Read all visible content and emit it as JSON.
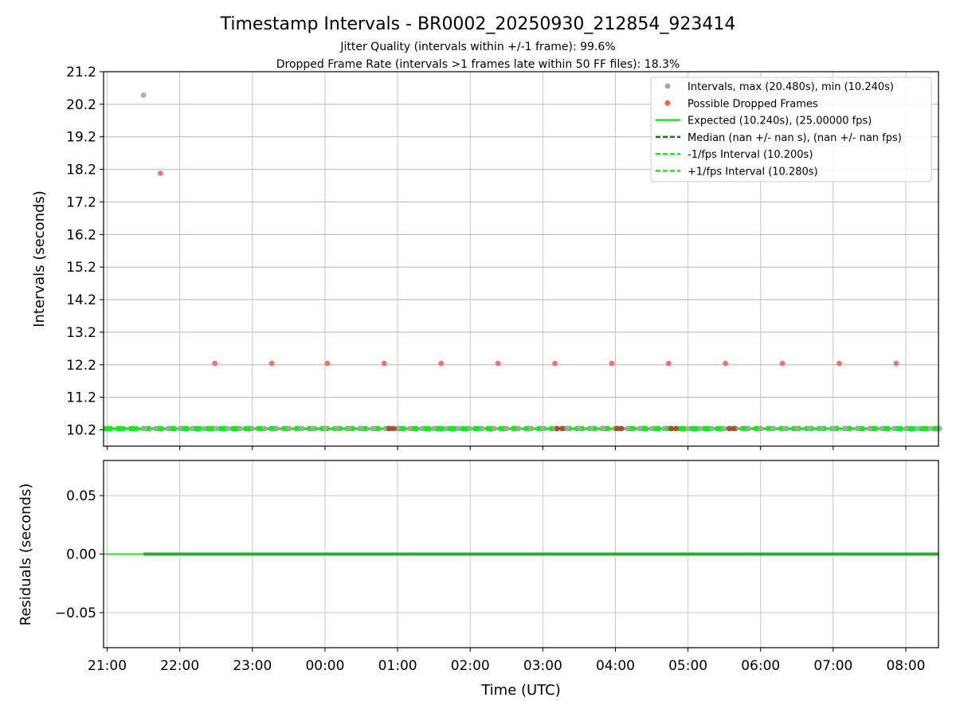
{
  "chart_data": [
    {
      "type": "scatter",
      "title": "Timestamp Intervals - BR0002_20250930_212854_923414",
      "subtitle_lines": [
        "Jitter Quality (intervals within +/-1 frame): 99.6%",
        "Dropped Frame Rate (intervals >1 frames late within 50 FF files): 18.3%"
      ],
      "ylabel": "Intervals (seconds)",
      "ylim": [
        9.7,
        21.2
      ],
      "yticks": [
        10.2,
        11.2,
        12.2,
        13.2,
        14.2,
        15.2,
        16.2,
        17.2,
        18.2,
        19.2,
        20.2,
        21.2
      ],
      "xlim_hours": [
        20.95,
        32.45
      ],
      "grid": true,
      "legend_position": "top-right",
      "series": [
        {
          "name": "Intervals, max (20.480s), min (10.240s)",
          "kind": "scatter",
          "color": "#a6a6a6",
          "points": [
            {
              "x": "21:30",
              "y": 20.48
            },
            {
              "x": "21:31",
              "y": 10.24
            },
            {
              "x": "21:40",
              "y": 10.24
            },
            {
              "x": "21:50",
              "y": 10.24
            },
            {
              "x": "22:00",
              "y": 10.24
            },
            {
              "x": "22:10",
              "y": 10.24
            },
            {
              "x": "22:20",
              "y": 10.24
            },
            {
              "x": "22:30",
              "y": 10.24
            },
            {
              "x": "22:40",
              "y": 10.24
            },
            {
              "x": "22:50",
              "y": 10.24
            },
            {
              "x": "23:00",
              "y": 10.24
            },
            {
              "x": "23:10",
              "y": 10.24
            },
            {
              "x": "23:20",
              "y": 10.24
            },
            {
              "x": "23:30",
              "y": 10.24
            },
            {
              "x": "23:40",
              "y": 10.24
            },
            {
              "x": "23:50",
              "y": 10.24
            },
            {
              "x": "00:00",
              "y": 10.24
            },
            {
              "x": "00:10",
              "y": 10.24
            },
            {
              "x": "00:20",
              "y": 10.24
            },
            {
              "x": "00:30",
              "y": 10.24
            },
            {
              "x": "00:40",
              "y": 10.24
            },
            {
              "x": "00:50",
              "y": 10.24
            },
            {
              "x": "01:00",
              "y": 10.24
            },
            {
              "x": "01:10",
              "y": 10.24
            },
            {
              "x": "01:20",
              "y": 10.24
            },
            {
              "x": "01:30",
              "y": 10.24
            },
            {
              "x": "01:40",
              "y": 10.24
            },
            {
              "x": "01:50",
              "y": 10.24
            },
            {
              "x": "02:00",
              "y": 10.24
            },
            {
              "x": "02:10",
              "y": 10.24
            },
            {
              "x": "02:20",
              "y": 10.24
            },
            {
              "x": "02:30",
              "y": 10.24
            },
            {
              "x": "02:40",
              "y": 10.24
            },
            {
              "x": "02:50",
              "y": 10.24
            },
            {
              "x": "03:00",
              "y": 10.24
            },
            {
              "x": "03:10",
              "y": 10.24
            },
            {
              "x": "03:20",
              "y": 10.24
            },
            {
              "x": "03:30",
              "y": 10.24
            },
            {
              "x": "03:40",
              "y": 10.24
            },
            {
              "x": "03:50",
              "y": 10.24
            },
            {
              "x": "04:00",
              "y": 10.24
            },
            {
              "x": "04:10",
              "y": 10.24
            },
            {
              "x": "04:20",
              "y": 10.24
            },
            {
              "x": "04:30",
              "y": 10.24
            },
            {
              "x": "04:40",
              "y": 10.24
            },
            {
              "x": "04:50",
              "y": 10.24
            },
            {
              "x": "05:00",
              "y": 10.24
            },
            {
              "x": "05:10",
              "y": 10.24
            },
            {
              "x": "05:20",
              "y": 10.24
            },
            {
              "x": "05:30",
              "y": 10.24
            },
            {
              "x": "05:40",
              "y": 10.24
            },
            {
              "x": "05:50",
              "y": 10.24
            },
            {
              "x": "06:00",
              "y": 10.24
            },
            {
              "x": "06:10",
              "y": 10.24
            },
            {
              "x": "06:20",
              "y": 10.24
            },
            {
              "x": "06:30",
              "y": 10.24
            },
            {
              "x": "06:40",
              "y": 10.24
            },
            {
              "x": "06:50",
              "y": 10.24
            },
            {
              "x": "07:00",
              "y": 10.24
            },
            {
              "x": "07:10",
              "y": 10.24
            },
            {
              "x": "07:20",
              "y": 10.24
            },
            {
              "x": "07:30",
              "y": 10.24
            },
            {
              "x": "07:40",
              "y": 10.24
            },
            {
              "x": "07:50",
              "y": 10.24
            },
            {
              "x": "08:00",
              "y": 10.24
            },
            {
              "x": "08:10",
              "y": 10.24
            },
            {
              "x": "08:20",
              "y": 10.24
            },
            {
              "x": "08:28",
              "y": 10.24
            }
          ]
        },
        {
          "name": "Possible Dropped Frames",
          "kind": "scatter",
          "color": "#f25a5a",
          "points": [
            {
              "x": "21:44",
              "y": 18.08
            },
            {
              "x": "22:29",
              "y": 12.24
            },
            {
              "x": "23:16",
              "y": 12.24
            },
            {
              "x": "00:02",
              "y": 12.24
            },
            {
              "x": "00:49",
              "y": 12.24
            },
            {
              "x": "00:53",
              "y": 10.24
            },
            {
              "x": "00:57",
              "y": 10.24
            },
            {
              "x": "01:36",
              "y": 12.24
            },
            {
              "x": "02:23",
              "y": 12.24
            },
            {
              "x": "03:10",
              "y": 12.24
            },
            {
              "x": "03:12",
              "y": 10.24
            },
            {
              "x": "03:16",
              "y": 10.24
            },
            {
              "x": "03:57",
              "y": 12.24
            },
            {
              "x": "04:01",
              "y": 10.24
            },
            {
              "x": "04:05",
              "y": 10.24
            },
            {
              "x": "04:44",
              "y": 12.24
            },
            {
              "x": "04:46",
              "y": 10.24
            },
            {
              "x": "04:50",
              "y": 10.24
            },
            {
              "x": "05:31",
              "y": 12.24
            },
            {
              "x": "05:34",
              "y": 10.24
            },
            {
              "x": "05:38",
              "y": 10.24
            },
            {
              "x": "06:18",
              "y": 12.24
            },
            {
              "x": "07:05",
              "y": 12.24
            },
            {
              "x": "07:52",
              "y": 12.24
            }
          ]
        },
        {
          "name": "Expected (10.240s), (25.00000 fps)",
          "kind": "line",
          "style": "solid",
          "color": "#1ee61e",
          "y": 10.24
        },
        {
          "name": "Median (nan +/- nan s), (nan +/- nan fps)",
          "kind": "line",
          "style": "dashed",
          "color": "#147814",
          "y": null
        },
        {
          "name": "-1/fps Interval (10.200s)",
          "kind": "line",
          "style": "dashed",
          "color": "#1ee61e",
          "y": 10.2
        },
        {
          "name": "+1/fps Interval (10.280s)",
          "kind": "line",
          "style": "dashed",
          "color": "#1ee61e",
          "y": 10.28
        }
      ]
    },
    {
      "type": "line",
      "ylabel": "Residuals (seconds)",
      "xlabel": "Time (UTC)",
      "ylim": [
        -0.08,
        0.08
      ],
      "yticks": [
        0.05,
        0.0,
        -0.05
      ],
      "ytick_labels": [
        "0.05",
        "0.00",
        "−0.05"
      ],
      "xticks": [
        "21:00",
        "22:00",
        "23:00",
        "00:00",
        "01:00",
        "02:00",
        "03:00",
        "04:00",
        "05:00",
        "06:00",
        "07:00",
        "08:00"
      ],
      "grid": true,
      "series": [
        {
          "kind": "line",
          "color": "#1ee61e",
          "x_range": [
            "20:57",
            "08:27"
          ],
          "y": 0.0
        },
        {
          "kind": "points",
          "color": "#2eaa2e",
          "x_range": [
            "21:30",
            "08:27"
          ],
          "y": 0.0
        }
      ]
    }
  ]
}
